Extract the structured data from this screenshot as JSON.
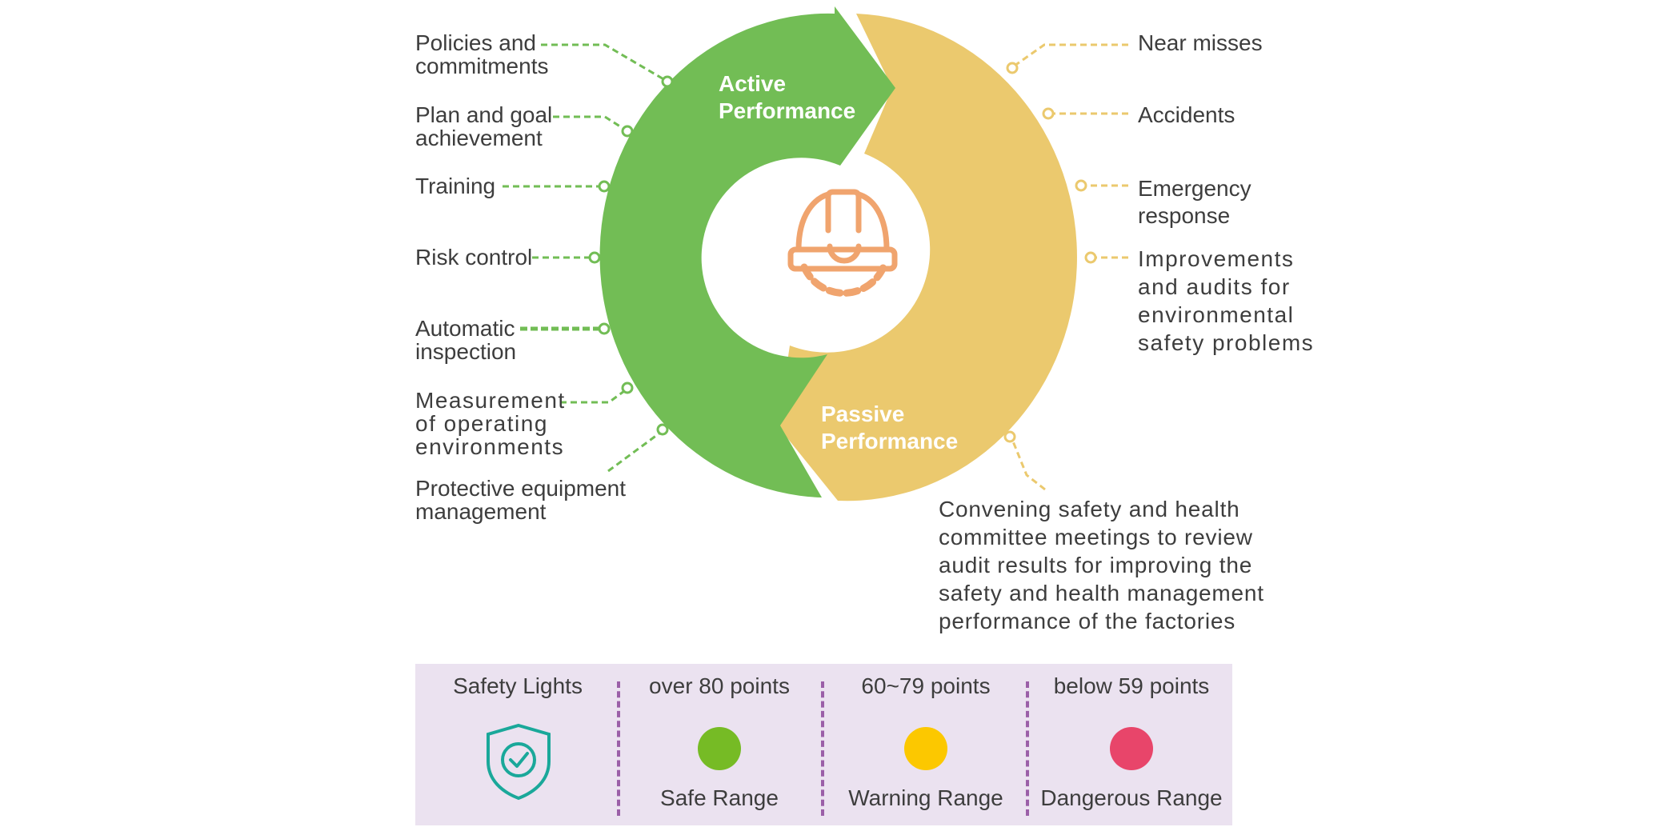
{
  "diagram": {
    "active_title": "Active\nPerformance",
    "passive_title": "Passive\nPerformance",
    "active_items": [
      "Policies and\ncommitments",
      "Plan and goal\nachievement",
      "Training",
      "Risk control",
      "Automatic\ninspection",
      "Measurement\nof operating\nenvironments",
      "Protective equipment\nmanagement"
    ],
    "passive_items": [
      "Near misses",
      "Accidents",
      "Emergency\nresponse",
      "Improvements\nand audits for\nenvironmental\nsafety problems",
      "Convening safety and health\ncommittee meetings to review\naudit results for improving the\nsafety and health management\nperformance of the factories"
    ],
    "center_icon": "hard-hat-gear-icon"
  },
  "legend": {
    "title": "Safety Lights",
    "title_icon": "shield-check-icon",
    "levels": [
      {
        "range": "over 80 points",
        "label": "Safe Range",
        "color": "#76bb25"
      },
      {
        "range": "60~79 points",
        "label": "Warning Range",
        "color": "#fcc800"
      },
      {
        "range": "below 59 points",
        "label": "Dangerous Range",
        "color": "#e8456a"
      }
    ]
  },
  "colors": {
    "active": "#72bd55",
    "passive": "#ebc96e",
    "icon": "#f0a46e",
    "shield": "#1aa89a",
    "legend_bg": "#ebe2f0",
    "legend_divider": "#9b5fa8"
  }
}
